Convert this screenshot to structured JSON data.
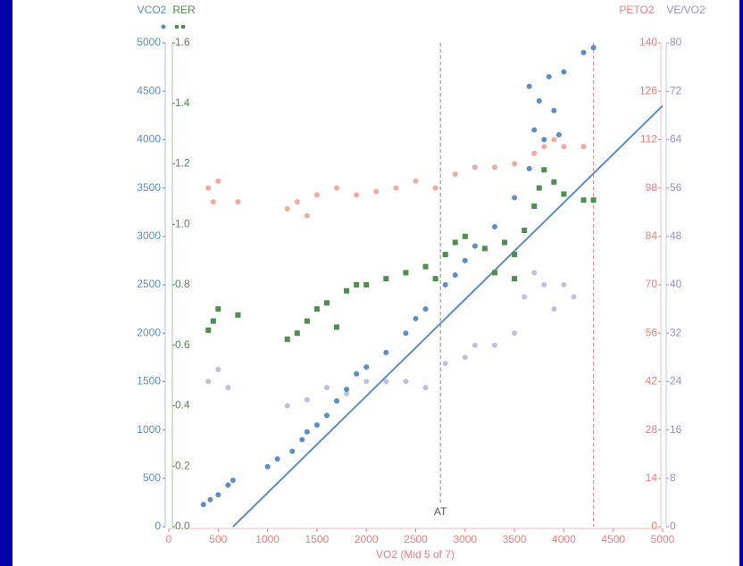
{
  "chart_data": {
    "type": "scatter",
    "x_label": "VO2 (Mid 5 of 7)",
    "xlim": [
      0,
      5000
    ],
    "xticks": [
      0,
      500,
      1000,
      1500,
      2000,
      2500,
      3000,
      3500,
      4000,
      4500,
      5000
    ],
    "y_label": "VCO2",
    "ylim": [
      0,
      5000
    ],
    "yticks": [
      0,
      500,
      1000,
      1500,
      2000,
      2500,
      3000,
      3500,
      4000,
      4500,
      5000
    ],
    "y2_label": "RER",
    "y2lim": [
      0,
      1.6
    ],
    "y2ticks": [
      {
        "value": 0,
        "label": "0.0"
      },
      0.2,
      0.4,
      0.6,
      0.8,
      {
        "value": 1,
        "label": "1.0"
      },
      1.2,
      1.4,
      1.6
    ],
    "y3_label": "PETO2",
    "y3lim": [
      0,
      140
    ],
    "y3ticks": [
      0,
      14,
      28,
      42,
      56,
      70,
      84,
      98,
      112,
      126,
      140
    ],
    "y4_label": "VE/VO2",
    "y4lim": [
      0,
      80
    ],
    "y4ticks": [
      0,
      8,
      16,
      24,
      32,
      40,
      48,
      56,
      64,
      72,
      80
    ],
    "annotations": [
      {
        "text": "AT",
        "x": 2750,
        "color": "#888888"
      }
    ],
    "vlines": [
      {
        "x": 4300,
        "color": "#f08080"
      }
    ],
    "reference_line": {
      "x": [
        650,
        5000
      ],
      "y": [
        0,
        4350
      ],
      "color": "#5b8ec8"
    },
    "series": [
      {
        "name": "VCO2",
        "axis": "y",
        "color": "#5b8ec8",
        "marker": "circle",
        "x": [
          350,
          420,
          500,
          600,
          650,
          1000,
          1100,
          1250,
          1350,
          1400,
          1500,
          1600,
          1700,
          1800,
          1900,
          2000,
          2200,
          2400,
          2500,
          2600,
          2800,
          2900,
          3000,
          3100,
          3300,
          3500,
          3650,
          3700,
          3750,
          3850,
          3900,
          3800,
          4000,
          4200,
          4300,
          3950,
          3650
        ],
        "values": [
          230,
          280,
          330,
          430,
          480,
          620,
          700,
          780,
          900,
          980,
          1050,
          1150,
          1300,
          1420,
          1580,
          1650,
          1800,
          2000,
          2150,
          2250,
          2500,
          2600,
          2750,
          2900,
          3100,
          3400,
          3700,
          4100,
          4400,
          4650,
          4300,
          4000,
          4700,
          4900,
          4950,
          4050,
          4550
        ]
      },
      {
        "name": "RER",
        "axis": "y2",
        "color": "#4e8f4e",
        "marker": "square",
        "x": [
          400,
          450,
          500,
          700,
          1200,
          1300,
          1400,
          1500,
          1600,
          1700,
          1800,
          1900,
          2000,
          2200,
          2400,
          2600,
          2700,
          2800,
          2900,
          3000,
          3200,
          3400,
          3500,
          3600,
          3700,
          3750,
          3800,
          3900,
          4000,
          4200,
          4300,
          3500,
          3300
        ],
        "values": [
          0.65,
          0.68,
          0.72,
          0.7,
          0.62,
          0.64,
          0.68,
          0.72,
          0.74,
          0.66,
          0.78,
          0.8,
          0.8,
          0.82,
          0.84,
          0.86,
          0.82,
          0.9,
          0.94,
          0.96,
          0.92,
          0.94,
          0.9,
          0.98,
          1.06,
          1.12,
          1.18,
          1.14,
          1.1,
          1.08,
          1.08,
          0.82,
          0.84
        ]
      },
      {
        "name": "PETO2",
        "axis": "y3",
        "color": "#f4a8a0",
        "marker": "circle",
        "x": [
          400,
          450,
          500,
          700,
          1200,
          1300,
          1400,
          1500,
          1700,
          1900,
          2100,
          2300,
          2500,
          2700,
          2900,
          3100,
          3300,
          3500,
          3700,
          3800,
          3900,
          4000,
          4200
        ],
        "values": [
          98,
          94,
          100,
          94,
          92,
          94,
          90,
          96,
          98,
          96,
          97,
          98,
          100,
          98,
          102,
          104,
          104,
          105,
          108,
          110,
          112,
          110,
          110
        ]
      },
      {
        "name": "VE/VO2",
        "axis": "y4",
        "color": "#c4bede",
        "marker": "circle",
        "x": [
          400,
          500,
          600,
          1200,
          1400,
          1600,
          1800,
          2000,
          2200,
          2400,
          2600,
          2800,
          3000,
          3100,
          3300,
          3500,
          3600,
          3700,
          3800,
          3900,
          4000,
          4100
        ],
        "values": [
          24,
          26,
          23,
          20,
          21,
          23,
          22,
          24,
          24,
          24,
          23,
          27,
          28,
          30,
          30,
          32,
          38,
          42,
          40,
          36,
          40,
          38
        ]
      }
    ]
  }
}
